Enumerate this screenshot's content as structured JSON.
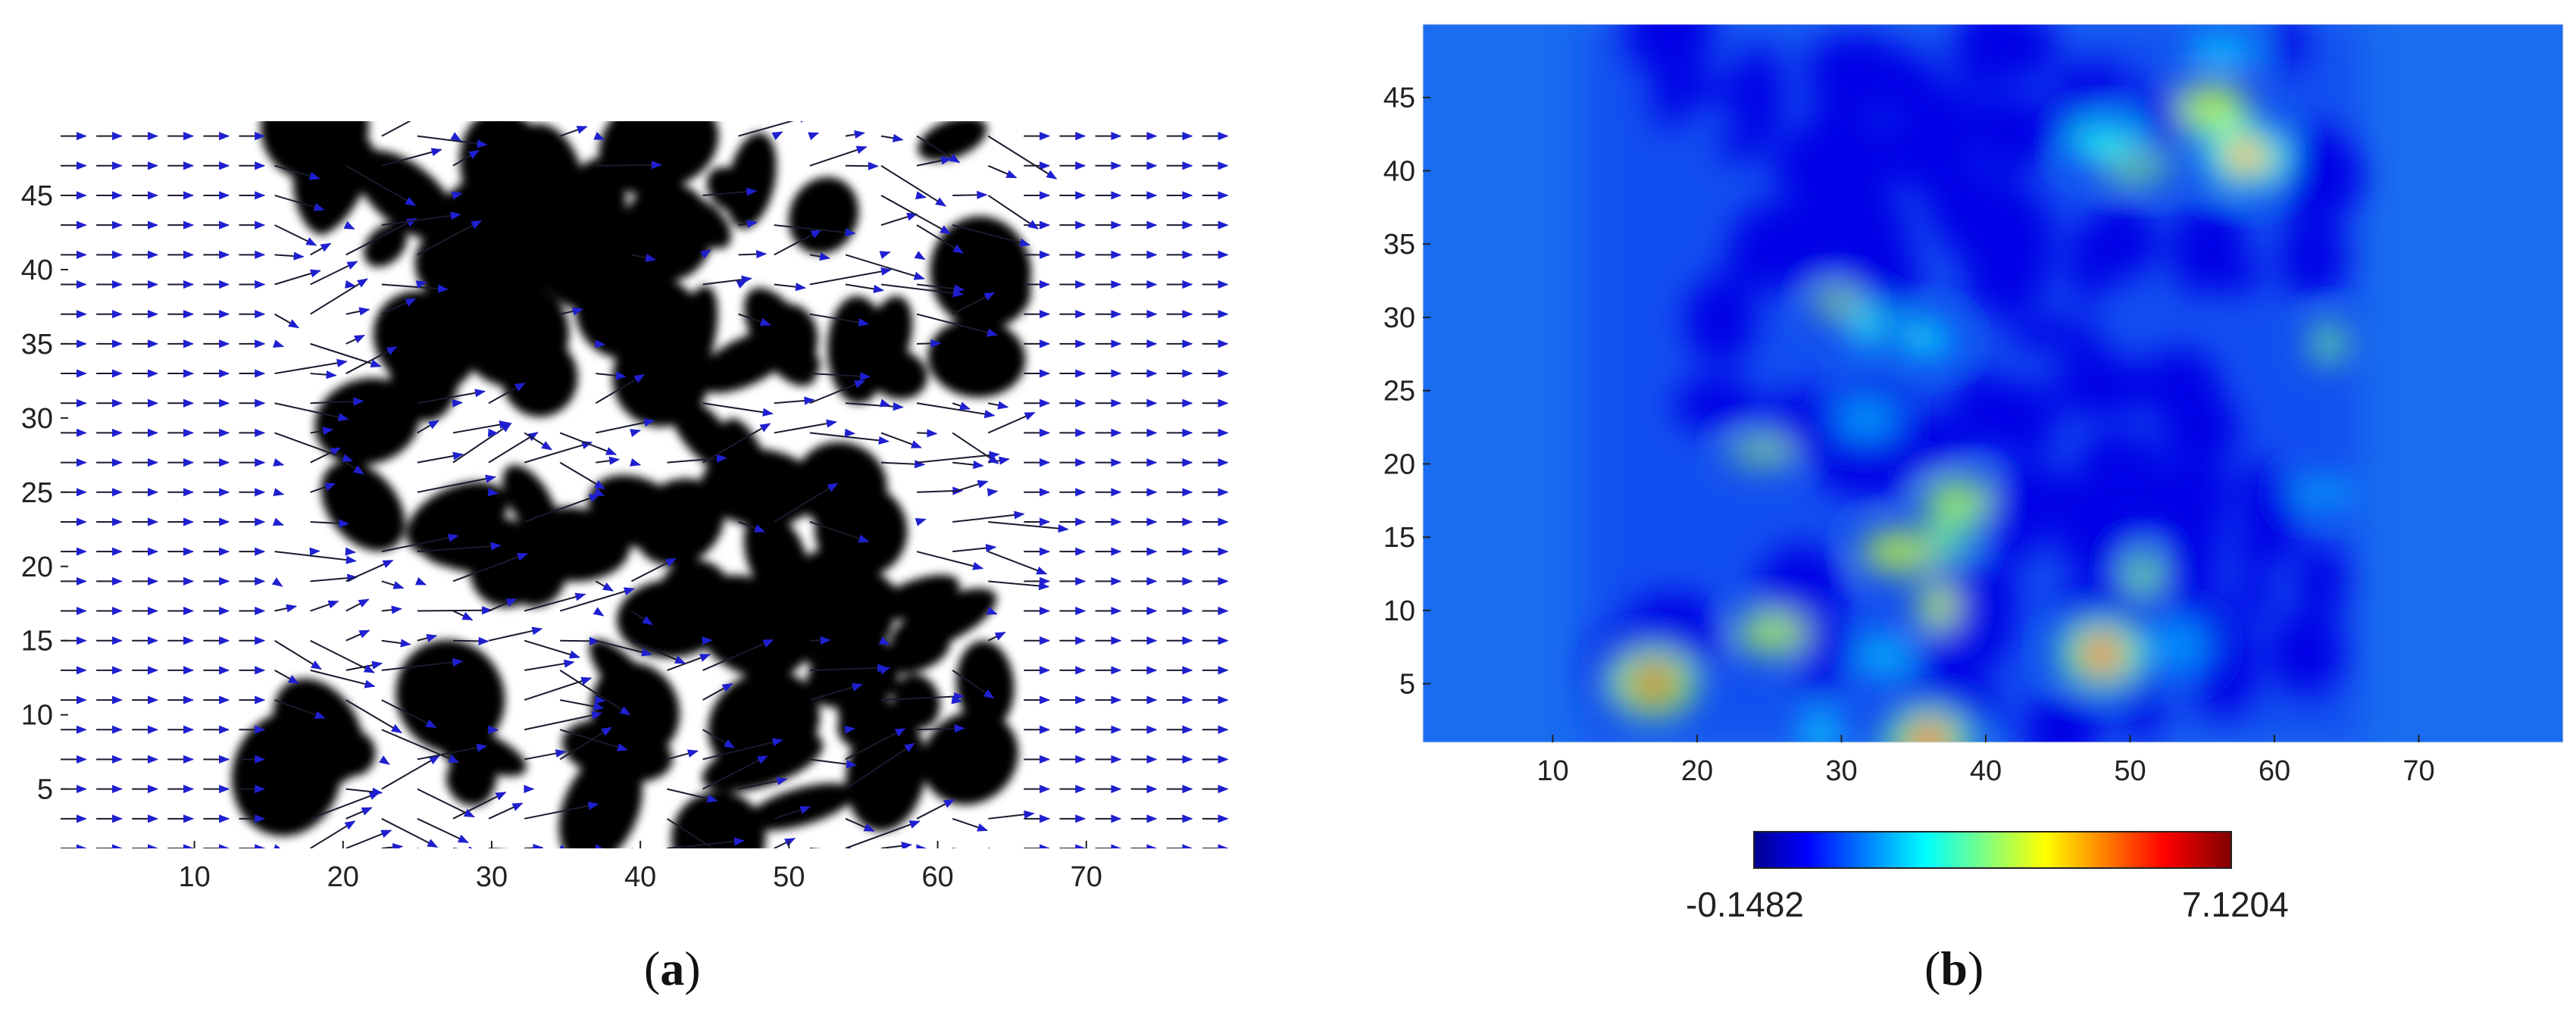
{
  "chart_data": [
    {
      "panel": "a",
      "type": "quiver",
      "xlim": [
        1,
        80
      ],
      "ylim": [
        1,
        50
      ],
      "xticks": [
        10,
        20,
        30,
        40,
        50,
        60,
        70
      ],
      "yticks": [
        5,
        10,
        15,
        20,
        25,
        30,
        35,
        40,
        45
      ],
      "porous_region_x": [
        15,
        65
      ],
      "colors": {
        "solid": "#000000",
        "pore": "#ffffff",
        "arrow_line": "#1a1a2e",
        "arrow_head": "#1f1fd0"
      }
    },
    {
      "panel": "b",
      "type": "heatmap",
      "xlim": [
        1,
        80
      ],
      "ylim": [
        1,
        50
      ],
      "xticks": [
        10,
        20,
        30,
        40,
        50,
        60,
        70
      ],
      "yticks": [
        5,
        10,
        15,
        20,
        25,
        30,
        35,
        40,
        45
      ],
      "colorbar": {
        "min_label": "-0.1482",
        "max_label": "7.1204",
        "min": -0.1482,
        "max": 7.1204,
        "colormap": "jet"
      },
      "hotspots": [
        {
          "x": 17,
          "y": 5,
          "value": 6.5
        },
        {
          "x": 48,
          "y": 7,
          "value": 5.8
        },
        {
          "x": 58,
          "y": 41,
          "value": 5.0
        },
        {
          "x": 36,
          "y": 1,
          "value": 6.0
        }
      ]
    }
  ],
  "labels": {
    "a_open": "(",
    "a_letter": "a",
    "a_close": ")",
    "b_open": "(",
    "b_letter": "b",
    "b_close": ")"
  }
}
